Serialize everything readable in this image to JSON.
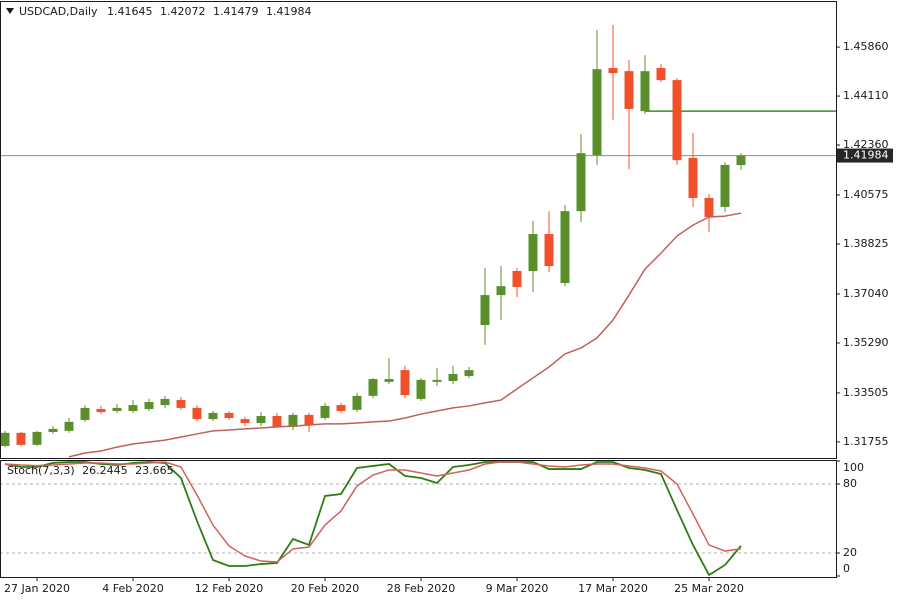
{
  "chart_data": {
    "type": "candlestick",
    "title": "USDCAD,Daily",
    "categories": [
      null,
      null,
      "27 Jan 2020",
      null,
      null,
      null,
      null,
      null,
      "4 Feb 2020",
      null,
      null,
      null,
      null,
      null,
      "12 Feb 2020",
      null,
      null,
      null,
      null,
      null,
      "20 Feb 2020",
      null,
      null,
      null,
      null,
      null,
      "28 Feb 2020",
      null,
      null,
      null,
      null,
      null,
      "9 Mar 2020",
      null,
      null,
      null,
      null,
      null,
      "17 Mar 2020",
      null,
      null,
      null,
      null,
      null,
      "25 Mar 2020",
      null,
      null
    ],
    "open": [
      1.3161,
      1.3208,
      1.3165,
      1.3211,
      1.3215,
      1.3254,
      1.3293,
      1.3286,
      1.3286,
      1.3293,
      1.3307,
      1.3325,
      1.3297,
      1.3257,
      1.3279,
      1.3257,
      1.3243,
      1.3268,
      1.3229,
      1.3272,
      1.3261,
      1.3307,
      1.329,
      1.334,
      1.339,
      1.3432,
      1.3329,
      1.339,
      1.3393,
      1.3411,
      1.3593,
      1.37,
      1.3786,
      1.3786,
      1.3918,
      1.3743,
      1.4,
      1.42,
      1.4511,
      1.45,
      1.4357,
      1.4511,
      1.4468,
      1.419,
      1.4047,
      1.4015,
      1.41645
    ],
    "high": [
      1.3215,
      1.3211,
      1.3215,
      1.3232,
      1.3261,
      1.3307,
      1.3304,
      1.3311,
      1.3325,
      1.3329,
      1.334,
      1.3336,
      1.3307,
      1.3286,
      1.3286,
      1.3265,
      1.3282,
      1.3279,
      1.3279,
      1.3279,
      1.3315,
      1.3315,
      1.335,
      1.3404,
      1.3475,
      1.3447,
      1.3404,
      1.344,
      1.3447,
      1.3443,
      1.3797,
      1.3804,
      1.3797,
      1.3965,
      1.4,
      1.4022,
      1.4275,
      1.4647,
      1.4665,
      1.454,
      1.4557,
      1.4525,
      1.4475,
      1.4279,
      1.4061,
      1.4175,
      1.42072
    ],
    "low": [
      1.3157,
      1.3161,
      1.3161,
      1.3204,
      1.3208,
      1.3247,
      1.3275,
      1.3279,
      1.3279,
      1.3286,
      1.3297,
      1.329,
      1.325,
      1.325,
      1.3254,
      1.3232,
      1.3232,
      1.3225,
      1.3218,
      1.3211,
      1.3254,
      1.3279,
      1.3282,
      1.3332,
      1.3382,
      1.3332,
      1.3322,
      1.3375,
      1.3382,
      1.3404,
      1.3522,
      1.3611,
      1.3693,
      1.3711,
      1.3782,
      1.3732,
      1.3961,
      1.4165,
      1.4325,
      1.415,
      1.4347,
      1.4461,
      1.4165,
      1.4015,
      1.3925,
      1.3997,
      1.41479
    ],
    "close": [
      1.3208,
      1.3165,
      1.3211,
      1.3222,
      1.3247,
      1.3297,
      1.3282,
      1.3297,
      1.3307,
      1.3318,
      1.3329,
      1.3297,
      1.3257,
      1.3279,
      1.3261,
      1.3243,
      1.3268,
      1.3229,
      1.3272,
      1.3236,
      1.3304,
      1.3286,
      1.334,
      1.34,
      1.34,
      1.3343,
      1.3397,
      1.3397,
      1.3418,
      1.3432,
      1.37,
      1.3732,
      1.3729,
      1.3918,
      1.3804,
      1.4,
      1.4207,
      1.4507,
      1.4493,
      1.4365,
      1.45,
      1.4468,
      1.4182,
      1.4047,
      1.3979,
      1.4165,
      1.41984
    ],
    "up_color": "#5b8f2e",
    "down_color": "#f0502a",
    "ylim": [
      1.3118,
      1.4747
    ],
    "yticks": [
      {
        "value": 1.4586,
        "label": "1.45860"
      },
      {
        "value": 1.4411,
        "label": "1.44110"
      },
      {
        "value": 1.4236,
        "label": "1.42360"
      },
      1.40575,
      1.38825,
      {
        "value": 1.3704,
        "label": "1.37040"
      },
      {
        "value": 1.3529,
        "label": "1.35290"
      },
      1.33505,
      1.31755
    ],
    "moving_average": {
      "color": "#c0605a",
      "values": [
        null,
        null,
        null,
        null,
        1.3122,
        1.3136,
        1.3143,
        1.3157,
        1.3168,
        1.3175,
        1.3182,
        1.3193,
        1.3204,
        1.3215,
        1.3218,
        1.3222,
        1.3225,
        1.3229,
        1.3232,
        1.3236,
        1.324,
        1.324,
        1.3243,
        1.3247,
        1.325,
        1.3261,
        1.3275,
        1.3286,
        1.3297,
        1.3304,
        1.3315,
        1.3325,
        1.3365,
        1.3404,
        1.3443,
        1.349,
        1.3511,
        1.3547,
        1.3611,
        1.37,
        1.3793,
        1.385,
        1.3911,
        1.395,
        1.3979,
        1.3982,
        1.3993
      ]
    },
    "horizontal_line": {
      "value": 1.4357,
      "color": "#3c8a2a"
    },
    "bid_line_color": "#8c8c8c",
    "indicator": {
      "type": "line",
      "label": "Stoch(7,3,3)",
      "ylim": [
        0,
        100
      ],
      "yticks": [
        100,
        80,
        20,
        0
      ],
      "levels": [
        80,
        20
      ],
      "series": [
        {
          "color": "#2e7d12",
          "values": [
            97.4,
            94.8,
            94.8,
            98.3,
            99.1,
            99.1,
            97.4,
            96.5,
            98.3,
            99.1,
            98.3,
            85.2,
            47.8,
            13.9,
            8.7,
            8.7,
            10.4,
            11.3,
            32.2,
            27.0,
            69.6,
            71.3,
            93.9,
            95.7,
            97.4,
            87.0,
            85.2,
            80.9,
            94.8,
            96.5,
            99.1,
            99.1,
            99.1,
            99.1,
            93.0,
            93.0,
            93.0,
            99.1,
            99.1,
            93.9,
            92.2,
            88.7,
            57.4,
            27.0,
            0.9,
            9.6,
            26.2445
          ]
        },
        {
          "color": "#d0625c",
          "values": [
            97.4,
            96.5,
            96.0,
            96.5,
            97.4,
            98.3,
            98.3,
            97.4,
            97.4,
            98.3,
            99.1,
            94.8,
            70.4,
            44.3,
            26.1,
            17.4,
            13.0,
            12.2,
            23.5,
            25.2,
            44.3,
            56.5,
            78.3,
            87.8,
            92.2,
            92.2,
            89.6,
            87.0,
            89.6,
            92.2,
            97.4,
            99.1,
            99.1,
            97.4,
            95.7,
            94.8,
            96.5,
            97.4,
            97.4,
            95.7,
            93.9,
            91.3,
            80.0,
            53.9,
            27.0,
            21.7,
            23.665
          ]
        }
      ]
    }
  }
}
